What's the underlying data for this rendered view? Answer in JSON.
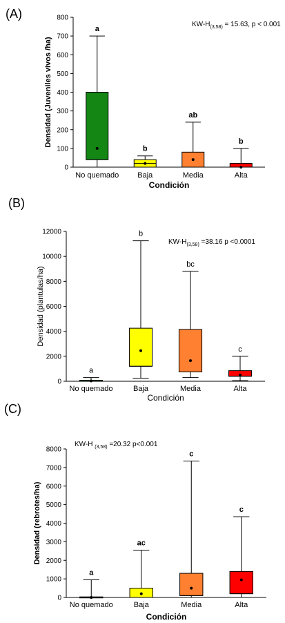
{
  "chart_data": [
    {
      "type": "box",
      "panel": "(A)",
      "ylabel": "Densidad (Juveniles vivos /ha)",
      "xlabel": "Condición",
      "ylim": [
        0,
        800
      ],
      "yticks": [
        0,
        100,
        200,
        300,
        400,
        500,
        600,
        700,
        800
      ],
      "categories": [
        "No quemado",
        "Baja",
        "Media",
        "Alta"
      ],
      "colors": [
        "#138613",
        "#ffff00",
        "#ff8030",
        "#ff0000"
      ],
      "boxes": [
        {
          "whisker_low": 0,
          "q1": 40,
          "median": 40,
          "q3": 400,
          "whisker_high": 700,
          "mean": 100,
          "letter": "a"
        },
        {
          "whisker_low": 0,
          "q1": 0,
          "median": 20,
          "q3": 40,
          "whisker_high": 60,
          "mean": 20,
          "letter": "b"
        },
        {
          "whisker_low": 0,
          "q1": 0,
          "median": 0,
          "q3": 80,
          "whisker_high": 240,
          "mean": 40,
          "letter": "ab"
        },
        {
          "whisker_low": 0,
          "q1": 0,
          "median": 0,
          "q3": 20,
          "whisker_high": 100,
          "mean": 0,
          "letter": "b"
        }
      ],
      "annotation": {
        "prefix": "KW-H",
        "sub": "(3,58)",
        "suffix": " = 15.63, p < 0.001"
      },
      "bold_labels": true
    },
    {
      "type": "box",
      "panel": "(B)",
      "ylabel": "Densidad (plantulas/ha)",
      "xlabel": "Condición",
      "ylim": [
        0,
        12000
      ],
      "yticks": [
        0,
        2000,
        4000,
        6000,
        8000,
        10000,
        12000
      ],
      "categories": [
        "No quemado",
        "Baja",
        "Media",
        "Alta"
      ],
      "colors": [
        "#138613",
        "#ffff00",
        "#ff8030",
        "#ff0000"
      ],
      "boxes": [
        {
          "whisker_low": 0,
          "q1": 0,
          "median": 0,
          "q3": 80,
          "whisker_high": 300,
          "mean": 30,
          "letter": "a"
        },
        {
          "whisker_low": 250,
          "q1": 1200,
          "median": 1200,
          "q3": 4250,
          "whisker_high": 11250,
          "mean": 2450,
          "letter": "b"
        },
        {
          "whisker_low": 300,
          "q1": 750,
          "median": 750,
          "q3": 4150,
          "whisker_high": 8800,
          "mean": 1650,
          "letter": "bc"
        },
        {
          "whisker_low": 50,
          "q1": 400,
          "median": 400,
          "q3": 850,
          "whisker_high": 2000,
          "mean": 500,
          "letter": "c"
        }
      ],
      "annotation": {
        "prefix": "KW-H",
        "sub": "(3,58)",
        "suffix": " =38.16 p <0.0001"
      },
      "bold_labels": false
    },
    {
      "type": "box",
      "panel": "(C)",
      "ylabel": "Densidad (rebrotes/ha)",
      "xlabel": "Condición",
      "ylim": [
        0,
        8000
      ],
      "yticks": [
        0,
        1000,
        2000,
        3000,
        4000,
        5000,
        6000,
        7000,
        8000
      ],
      "categories": [
        "No quemado",
        "Baja",
        "Media",
        "Alta"
      ],
      "colors": [
        "#138613",
        "#ffff00",
        "#ff8030",
        "#ff0000"
      ],
      "boxes": [
        {
          "whisker_low": 0,
          "q1": 0,
          "median": 0,
          "q3": 30,
          "whisker_high": 950,
          "mean": 0,
          "letter": "a"
        },
        {
          "whisker_low": 0,
          "q1": 0,
          "median": 0,
          "q3": 500,
          "whisker_high": 2550,
          "mean": 200,
          "letter": "ac"
        },
        {
          "whisker_low": 0,
          "q1": 100,
          "median": 100,
          "q3": 1300,
          "whisker_high": 7350,
          "mean": 500,
          "letter": "c"
        },
        {
          "whisker_low": 0,
          "q1": 200,
          "median": 200,
          "q3": 1400,
          "whisker_high": 4350,
          "mean": 950,
          "letter": "c"
        }
      ],
      "annotation": {
        "prefix": "KW-H ",
        "sub": "(3,58)",
        "suffix": " =20.32 p<0.001"
      },
      "bold_labels": true
    }
  ]
}
